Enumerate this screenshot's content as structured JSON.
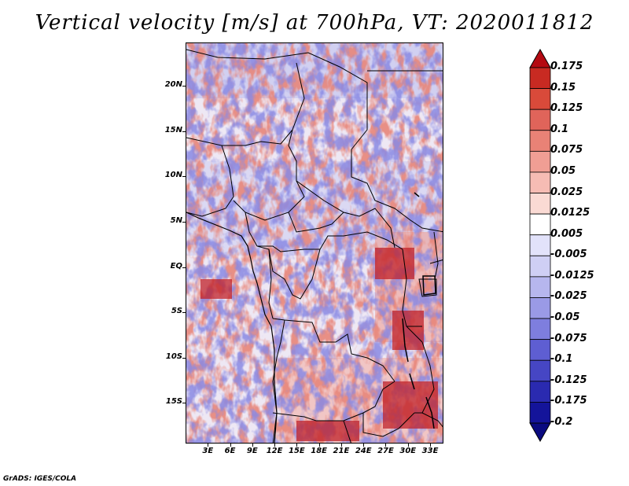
{
  "title": "Vertical velocity [m/s] at 700hPa, VT: 2020011812",
  "credit": "GrADS: IGES/COLA",
  "map": {
    "lat_labels": [
      "20N",
      "15N",
      "10N",
      "5N",
      "EQ",
      "5S",
      "10S",
      "15S"
    ],
    "lat_values": [
      20,
      15,
      10,
      5,
      0,
      -5,
      -10,
      -15
    ],
    "lon_labels": [
      "3E",
      "6E",
      "9E",
      "12E",
      "15E",
      "18E",
      "21E",
      "24E",
      "27E",
      "30E",
      "33E"
    ],
    "lon_values": [
      3,
      6,
      9,
      12,
      15,
      18,
      21,
      24,
      27,
      30,
      33
    ],
    "lat_range": [
      -19.5,
      24.8
    ],
    "lon_range": [
      0,
      34.8
    ]
  },
  "colorbar": {
    "labels": [
      "0.175",
      "0.15",
      "0.125",
      "0.1",
      "0.075",
      "0.05",
      "0.025",
      "0.0125",
      "0.005",
      "-0.005",
      "-0.0125",
      "-0.025",
      "-0.05",
      "-0.075",
      "-0.1",
      "-0.125",
      "-0.175",
      "-0.2"
    ],
    "colors": [
      "#b40a12",
      "#c82a22",
      "#d94a3a",
      "#e0645a",
      "#e98276",
      "#f09e94",
      "#f6bcb4",
      "#fadad4",
      "#ffffff",
      "#e2e2fa",
      "#cfcff4",
      "#b6b6ee",
      "#9a9ae6",
      "#7e7ede",
      "#5e5ed2",
      "#4646c4",
      "#2a2ab0",
      "#14149a",
      "#0a0a80"
    ]
  }
}
